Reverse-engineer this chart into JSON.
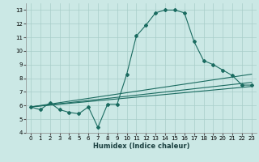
{
  "xlabel": "Humidex (Indice chaleur)",
  "xlim": [
    -0.5,
    23.5
  ],
  "ylim": [
    4,
    13.5
  ],
  "xticks": [
    0,
    1,
    2,
    3,
    4,
    5,
    6,
    7,
    8,
    9,
    10,
    11,
    12,
    13,
    14,
    15,
    16,
    17,
    18,
    19,
    20,
    21,
    22,
    23
  ],
  "yticks": [
    4,
    5,
    6,
    7,
    8,
    9,
    10,
    11,
    12,
    13
  ],
  "bg_color": "#cbe8e5",
  "grid_color": "#a8cdc9",
  "line_color": "#1a6b60",
  "main_line": {
    "x": [
      0,
      1,
      2,
      3,
      4,
      5,
      6,
      7,
      8,
      9,
      10,
      11,
      12,
      13,
      14,
      15,
      16,
      17,
      18,
      19,
      20,
      21,
      22,
      23
    ],
    "y": [
      5.9,
      5.7,
      6.2,
      5.7,
      5.5,
      5.4,
      5.9,
      4.4,
      6.1,
      6.1,
      8.3,
      11.1,
      11.9,
      12.8,
      13.0,
      13.0,
      12.8,
      10.7,
      9.3,
      9.0,
      8.6,
      8.2,
      7.5,
      7.5
    ]
  },
  "straight_lines": [
    {
      "x": [
        0,
        23
      ],
      "y": [
        5.9,
        7.4
      ]
    },
    {
      "x": [
        0,
        23
      ],
      "y": [
        5.9,
        7.7
      ]
    },
    {
      "x": [
        0,
        23
      ],
      "y": [
        5.9,
        8.3
      ]
    }
  ]
}
